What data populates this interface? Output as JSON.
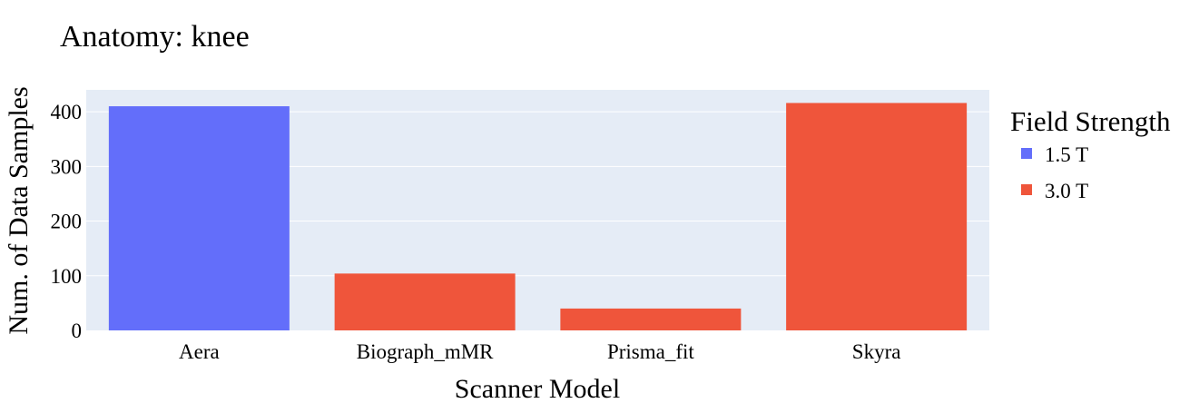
{
  "chart_data": {
    "type": "bar",
    "title": "Anatomy: knee",
    "xlabel": "Scanner Model",
    "ylabel": "Num. of Data Samples",
    "categories": [
      "Aera",
      "Biograph_mMR",
      "Prisma_fit",
      "Skyra"
    ],
    "values": [
      410,
      104,
      40,
      416
    ],
    "bar_groups": [
      "1.5 T",
      "3.0 T",
      "3.0 T",
      "3.0 T"
    ],
    "yticks": [
      0,
      100,
      200,
      300,
      400
    ],
    "ylim": [
      0,
      440
    ],
    "grid": true,
    "legend": {
      "title": "Field Strength",
      "position": "right",
      "items": [
        {
          "label": "1.5 T",
          "color": "#636efa"
        },
        {
          "label": "3.0 T",
          "color": "#ef553b"
        }
      ]
    },
    "colors": {
      "plot_background": "#e5ecf6",
      "grid": "#ffffff"
    }
  }
}
